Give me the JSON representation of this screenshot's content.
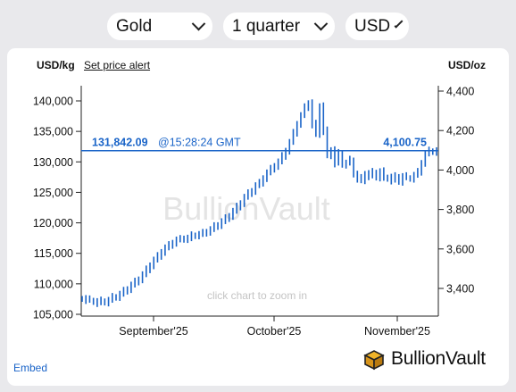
{
  "controls": {
    "metal": "Gold",
    "period": "1 quarter",
    "currency": "USD"
  },
  "chart_header": {
    "left_unit": "USD/kg",
    "alert_link": "Set price alert",
    "right_unit": "USD/oz"
  },
  "price_line": {
    "price_kg": "131,842.09",
    "time": "@15:28:24 GMT",
    "price_oz": "4,100.75"
  },
  "watermark": "BullionVault",
  "zoom_hint": "click chart to zoom in",
  "footer": {
    "embed": "Embed",
    "brand": "BullionVault"
  },
  "colors": {
    "series": "#1a64c8",
    "axis": "#222222",
    "watermark": "#e4e4e4",
    "background": "#e9e9ec"
  },
  "chart_data": {
    "type": "line",
    "x_axis": {
      "tick_labels": [
        "September'25",
        "October'25",
        "November'25"
      ]
    },
    "y_left": {
      "label": "USD/kg",
      "ticks": [
        105000,
        110000,
        115000,
        120000,
        125000,
        130000,
        135000,
        140000
      ],
      "tick_labels": [
        "105,000",
        "110,000",
        "115,000",
        "120,000",
        "125,000",
        "130,000",
        "135,000",
        "140,000"
      ],
      "ylim": [
        104500,
        141000
      ]
    },
    "y_right": {
      "label": "USD/oz",
      "ticks": [
        3400,
        3600,
        3800,
        4000,
        4200,
        4400
      ],
      "tick_labels": [
        "3,400",
        "3,600",
        "3,800",
        "4,000",
        "4,200",
        "4,400"
      ]
    },
    "current_price_kg": 131842.09,
    "grid": false,
    "series": [
      {
        "x_days": [
          0,
          1,
          2,
          3,
          4,
          5,
          6,
          7,
          8,
          9,
          10,
          11,
          12,
          13,
          14,
          15,
          16,
          17,
          18,
          19,
          20,
          21,
          22,
          23,
          24,
          25,
          26,
          27,
          28,
          29,
          30,
          31,
          32,
          33,
          34,
          35,
          36,
          37,
          38,
          39,
          40,
          41,
          42,
          43,
          44,
          45,
          46,
          47,
          48,
          49,
          50,
          51,
          52,
          53,
          54,
          55,
          56,
          57,
          58,
          59,
          60,
          61,
          62,
          63,
          64,
          65,
          66,
          67,
          68,
          69,
          70,
          71,
          72,
          73,
          74,
          75,
          76,
          77,
          78,
          79,
          80,
          81,
          82,
          83,
          84,
          85,
          86,
          87,
          88,
          89,
          90,
          91,
          92,
          93,
          94
        ],
        "values": [
          107600,
          107400,
          107300,
          107100,
          106900,
          107200,
          107000,
          107300,
          107800,
          107900,
          108300,
          108800,
          109200,
          109800,
          110300,
          110800,
          111500,
          112300,
          113100,
          113900,
          114500,
          115300,
          115900,
          116300,
          116800,
          117200,
          117300,
          117500,
          117400,
          117900,
          118000,
          118100,
          118300,
          118600,
          118900,
          119400,
          119700,
          120200,
          120700,
          121200,
          121900,
          122600,
          123300,
          124200,
          124800,
          125300,
          126100,
          126500,
          127400,
          128200,
          128800,
          129400,
          130000,
          130900,
          131900,
          133200,
          134700,
          136300,
          137600,
          138900,
          139700,
          136200,
          134500,
          139200,
          135100,
          131000,
          132000,
          129800,
          131400,
          129600,
          129800,
          130300,
          128000,
          127300,
          126900,
          128100,
          127700,
          128300,
          127500,
          128400,
          127300,
          127500,
          127000,
          127600,
          126800,
          127600,
          127400,
          127300,
          127800,
          128300,
          129900,
          131300,
          131800,
          131700,
          131842
        ]
      }
    ]
  }
}
